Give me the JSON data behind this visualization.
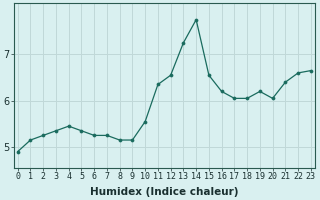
{
  "x": [
    0,
    1,
    2,
    3,
    4,
    5,
    6,
    7,
    8,
    9,
    10,
    11,
    12,
    13,
    14,
    15,
    16,
    17,
    18,
    19,
    20,
    21,
    22,
    23
  ],
  "y": [
    4.9,
    5.15,
    5.25,
    5.35,
    5.45,
    5.35,
    5.25,
    5.25,
    5.15,
    5.15,
    5.55,
    6.35,
    6.55,
    7.25,
    7.75,
    6.55,
    6.2,
    6.05,
    6.05,
    6.2,
    6.05,
    6.4,
    6.6,
    6.65
  ],
  "line_color": "#1a6b5e",
  "marker": "o",
  "marker_size": 2.2,
  "bg_color": "#d9f0f0",
  "grid_color": "#c0d8d8",
  "xlabel": "Humidex (Indice chaleur)",
  "ytick_labels": [
    "5",
    "6",
    "7"
  ],
  "yticks": [
    5,
    6,
    7
  ],
  "xticks": [
    0,
    1,
    2,
    3,
    4,
    5,
    6,
    7,
    8,
    9,
    10,
    11,
    12,
    13,
    14,
    15,
    16,
    17,
    18,
    19,
    20,
    21,
    22,
    23
  ],
  "xlim": [
    -0.3,
    23.3
  ],
  "ylim": [
    4.55,
    8.1
  ],
  "tick_fontsize": 6.0,
  "xlabel_fontsize": 7.5,
  "ytick_fontsize": 7.0
}
